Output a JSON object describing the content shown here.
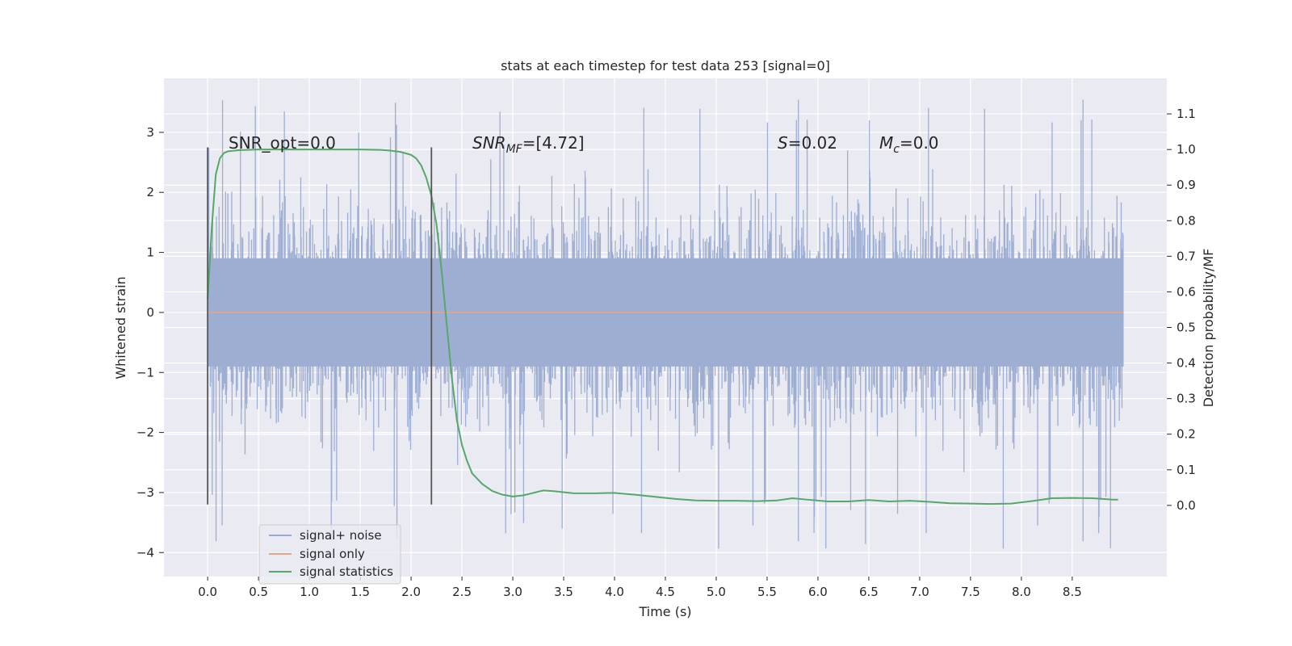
{
  "chart_data": {
    "type": "line",
    "title": "stats at each timestep for test data 253 [signal=0]",
    "xlabel": "Time (s)",
    "ylabel": "Whitened strain",
    "ylabel_right": "Detection probability/MF",
    "xlim": [
      -0.43,
      9.43
    ],
    "ylim": [
      -4.4,
      3.9
    ],
    "ylim_right": [
      -0.2,
      1.2
    ],
    "x_ticks": [
      0.0,
      0.5,
      1.0,
      1.5,
      2.0,
      2.5,
      3.0,
      3.5,
      4.0,
      4.5,
      5.0,
      5.5,
      6.0,
      6.5,
      7.0,
      7.5,
      8.0,
      8.5
    ],
    "x_tick_labels": [
      "0.0",
      "0.5",
      "1.0",
      "1.5",
      "2.0",
      "2.5",
      "3.0",
      "3.5",
      "4.0",
      "4.5",
      "5.0",
      "5.5",
      "6.0",
      "6.5",
      "7.0",
      "7.5",
      "8.0",
      "8.5"
    ],
    "y_ticks": [
      3,
      2,
      1,
      0,
      -1,
      -2,
      -3,
      -4
    ],
    "y_tick_labels": [
      "3",
      "2",
      "1",
      "0",
      "−1",
      "−2",
      "−3",
      "−4"
    ],
    "y_right_ticks": [
      1.1,
      1.0,
      0.9,
      0.8,
      0.7,
      0.6,
      0.5,
      0.4,
      0.3,
      0.2,
      0.1,
      0.0
    ],
    "y_right_tick_labels": [
      "1.1",
      "1.0",
      "0.9",
      "0.8",
      "0.7",
      "0.6",
      "0.5",
      "0.4",
      "0.3",
      "0.2",
      "0.1",
      "0.0"
    ],
    "grid": true,
    "legend_position": "bottom-left",
    "series": [
      {
        "name": "signal+ noise",
        "color": "#9aabd1",
        "axis": "left",
        "description": "whitened noise, x 0.0 to 9.0 s, roughly within -2.5 to 2.5 with spikes to 3.6 and -4.0",
        "x_range": [
          0.0,
          9.0
        ],
        "envelope": [
          -2.5,
          2.5
        ],
        "max": 3.55,
        "min": -4.0
      },
      {
        "name": "signal only",
        "color": "#e3a68c",
        "axis": "left",
        "x": [
          0.0,
          9.0
        ],
        "values": [
          0.0,
          0.0
        ]
      },
      {
        "name": "signal statistics",
        "color": "#55a868",
        "axis": "right",
        "x": [
          0.0,
          0.04,
          0.08,
          0.12,
          0.16,
          0.2,
          0.3,
          0.5,
          1.0,
          1.5,
          1.7,
          1.8,
          1.9,
          2.0,
          2.05,
          2.1,
          2.15,
          2.2,
          2.25,
          2.3,
          2.35,
          2.4,
          2.45,
          2.5,
          2.55,
          2.6,
          2.7,
          2.8,
          2.9,
          3.0,
          3.1,
          3.2,
          3.3,
          3.4,
          3.6,
          3.8,
          4.0,
          4.2,
          4.4,
          4.6,
          4.8,
          5.0,
          5.2,
          5.4,
          5.6,
          5.75,
          5.9,
          6.1,
          6.3,
          6.5,
          6.7,
          6.9,
          7.1,
          7.3,
          7.5,
          7.7,
          7.9,
          8.1,
          8.3,
          8.5,
          8.7,
          8.9,
          8.95
        ],
        "values": [
          0.58,
          0.78,
          0.93,
          0.975,
          0.99,
          0.995,
          0.998,
          1.0,
          1.0,
          1.0,
          0.999,
          0.997,
          0.993,
          0.985,
          0.975,
          0.955,
          0.92,
          0.87,
          0.79,
          0.66,
          0.51,
          0.36,
          0.24,
          0.17,
          0.125,
          0.09,
          0.06,
          0.04,
          0.03,
          0.025,
          0.028,
          0.035,
          0.042,
          0.04,
          0.034,
          0.034,
          0.035,
          0.03,
          0.024,
          0.018,
          0.014,
          0.013,
          0.013,
          0.012,
          0.014,
          0.02,
          0.016,
          0.011,
          0.011,
          0.015,
          0.011,
          0.013,
          0.01,
          0.006,
          0.005,
          0.004,
          0.005,
          0.012,
          0.02,
          0.021,
          0.02,
          0.016,
          0.016
        ]
      }
    ],
    "vertical_lines": [
      {
        "x": 0.0,
        "y_range": [
          -3.2,
          2.75
        ],
        "color": "#555555"
      },
      {
        "x": 2.2,
        "y_range": [
          -3.2,
          2.75
        ],
        "color": "#555555"
      }
    ],
    "annotations": [
      {
        "text": "SNR_opt=0.0",
        "x": 0.2,
        "y": 2.7
      },
      {
        "text": "SNR_MF=[4.72]",
        "base": "SNR",
        "sub": "MF",
        "rest": "=[4.72]",
        "x": 2.6,
        "y": 2.7
      },
      {
        "text": "S=0.02",
        "base": "S",
        "rest": "=0.02",
        "x": 5.6,
        "y": 2.7
      },
      {
        "text": "M_c=0.0",
        "base": "M",
        "sub": "c",
        "rest": "=0.0",
        "x": 6.6,
        "y": 2.7
      }
    ]
  }
}
